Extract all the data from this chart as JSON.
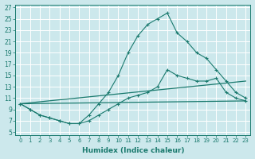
{
  "title": "",
  "xlabel": "Humidex (Indice chaleur)",
  "ylabel": "",
  "background_color": "#cce8ec",
  "grid_color": "#b8d8dc",
  "line_color": "#1a7a6e",
  "xlim": [
    -0.5,
    23.5
  ],
  "ylim": [
    4.5,
    27.5
  ],
  "xticks": [
    0,
    1,
    2,
    3,
    4,
    5,
    6,
    7,
    8,
    9,
    10,
    11,
    12,
    13,
    14,
    15,
    16,
    17,
    18,
    19,
    20,
    21,
    22,
    23
  ],
  "yticks": [
    5,
    7,
    9,
    11,
    13,
    15,
    17,
    19,
    21,
    23,
    25,
    27
  ],
  "lines": [
    {
      "x": [
        0,
        1,
        2,
        3,
        4,
        5,
        6,
        7,
        8,
        9,
        10,
        11,
        12,
        13,
        14,
        15,
        16,
        17,
        18,
        19,
        20,
        21,
        22,
        23
      ],
      "y": [
        10,
        9,
        8,
        7.5,
        7,
        6.5,
        6.5,
        8,
        10,
        12,
        15,
        19,
        22,
        24,
        25,
        26,
        22.5,
        21,
        19,
        18,
        16,
        14,
        12,
        11
      ],
      "markers": true
    },
    {
      "x": [
        0,
        1,
        2,
        3,
        4,
        5,
        6,
        7,
        8,
        9,
        10,
        11,
        12,
        13,
        14,
        15,
        16,
        17,
        18,
        19,
        20,
        21,
        22,
        23
      ],
      "y": [
        10,
        9,
        8,
        7.5,
        7,
        6.5,
        6.5,
        7,
        8,
        9,
        10,
        11,
        11.5,
        12,
        13,
        16,
        15,
        14.5,
        14,
        14,
        14.5,
        12,
        11,
        10.5
      ],
      "markers": true
    },
    {
      "x": [
        0,
        23
      ],
      "y": [
        10,
        10.5
      ],
      "markers": false
    },
    {
      "x": [
        0,
        23
      ],
      "y": [
        10,
        14
      ],
      "markers": false
    }
  ]
}
